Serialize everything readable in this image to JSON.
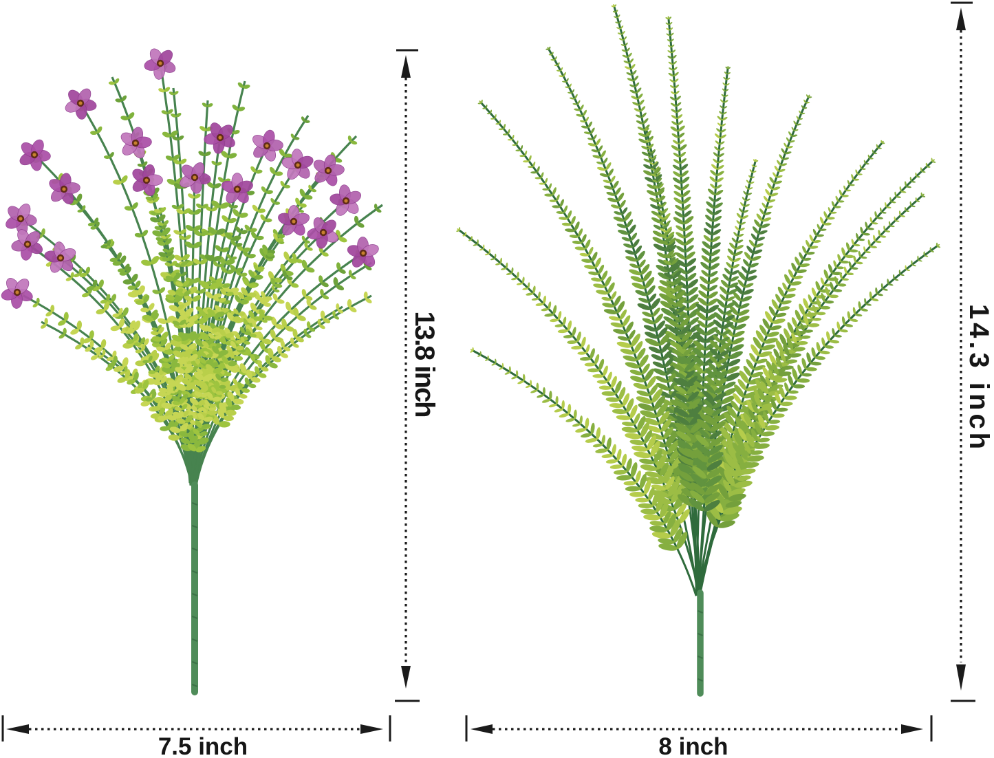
{
  "page": {
    "background": "#ffffff"
  },
  "dimensions": {
    "left_height": "13.8 inch",
    "left_width": "7.5 inch",
    "right_height": "14.3 inch",
    "right_width": "8 inch"
  },
  "illustrations": {
    "left": {
      "name": "purple-flower-eucalyptus-bouquet"
    },
    "right": {
      "name": "boston-fern-bush"
    }
  },
  "colors": {
    "dimension_ink": "#1b1b1b",
    "flower_petals": [
      "#b262ae",
      "#ab4fa7",
      "#c177bc",
      "#a1479d"
    ],
    "flower_petal_edge": "#8c3a8c",
    "flower_center": "#5f2b18",
    "flower_stamen": "#c8812e",
    "bouquet_greens": [
      "#6da23a",
      "#7fb23c",
      "#8ab83e",
      "#9ec43f",
      "#b9cf4a",
      "#c6d654"
    ],
    "fern_greens": [
      "#4e7f3f",
      "#61933f",
      "#74a03c",
      "#86af40",
      "#9cbd45",
      "#b5cc4b"
    ],
    "stem": "#4f8c59",
    "stem_dark": "#3c7247",
    "branch": "#47834f",
    "midrib": "#2f6b3c"
  }
}
